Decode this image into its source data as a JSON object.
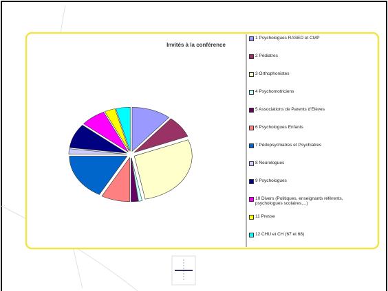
{
  "chart_data": {
    "type": "pie",
    "title": "Invités à la conférence",
    "categories": [
      "1 Psychologues RASED et CMP",
      "2 Pédiatres",
      "3 Orthophonistes",
      "4 Psychomotriciens",
      "5 Associations de Parents d'Elèves",
      "6 Psychologues Enfants",
      "7 Pédopsychiatres et Psychiatres",
      "8 Neurologues",
      "9 Psychologues",
      "10 Divers (Politiques, enseignants référents, psychologues scolaires,...)",
      "11 Presse",
      "12 CHU et CH (67 et 68)"
    ],
    "values": [
      11,
      8,
      28,
      1,
      2,
      8,
      17,
      2,
      9,
      7,
      3,
      4
    ],
    "colors": [
      "#9999ff",
      "#993366",
      "#ffffcc",
      "#ccffff",
      "#660066",
      "#ff8080",
      "#0066cc",
      "#ccccff",
      "#000080",
      "#ff00ff",
      "#ffff00",
      "#00ffff"
    ],
    "legend": "right"
  }
}
